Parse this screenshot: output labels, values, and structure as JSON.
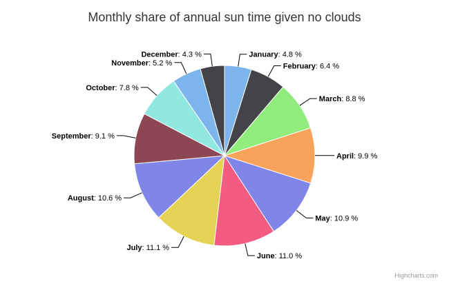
{
  "chart_data": {
    "type": "pie",
    "title": "Monthly share of annual sun time given no clouds",
    "value_suffix": " %",
    "slices": [
      {
        "name": "January",
        "value": 4.8,
        "label": "4.8 %",
        "color": "#7cb5ec"
      },
      {
        "name": "February",
        "value": 6.4,
        "label": "6.4 %",
        "color": "#434348"
      },
      {
        "name": "March",
        "value": 8.8,
        "label": "8.8 %",
        "color": "#90ed7d"
      },
      {
        "name": "April",
        "value": 9.9,
        "label": "9.9 %",
        "color": "#f7a35c"
      },
      {
        "name": "May",
        "value": 10.9,
        "label": "10.9 %",
        "color": "#8085e9"
      },
      {
        "name": "June",
        "value": 11.0,
        "label": "11.0 %",
        "color": "#f15c80"
      },
      {
        "name": "July",
        "value": 11.1,
        "label": "11.1 %",
        "color": "#e4d354"
      },
      {
        "name": "August",
        "value": 10.6,
        "label": "10.6 %",
        "color": "#8085e8"
      },
      {
        "name": "September",
        "value": 9.1,
        "label": "9.1 %",
        "color": "#8d4653"
      },
      {
        "name": "October",
        "value": 7.8,
        "label": "7.8 %",
        "color": "#91e8e1"
      },
      {
        "name": "November",
        "value": 5.2,
        "label": "5.2 %",
        "color": "#7cb5ec"
      },
      {
        "name": "December",
        "value": 4.3,
        "label": "4.3 %",
        "color": "#434348"
      }
    ],
    "credit": "Highcharts.com"
  }
}
